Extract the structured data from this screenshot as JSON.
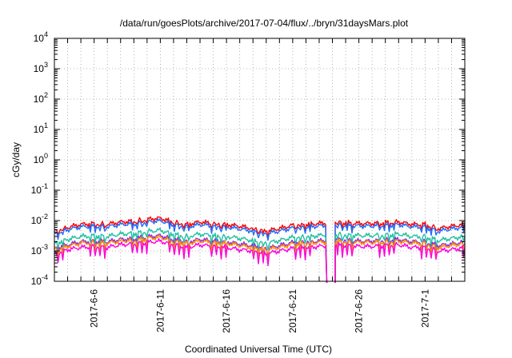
{
  "chart_data": {
    "type": "line",
    "title": "/data/run/goesPlots/archive/2017-07-04/flux/../bryn/31daysMars.plot",
    "xlabel": "Coordinated Universal Time (UTC)",
    "ylabel": "cGy/day",
    "yscale": "log",
    "ylim": [
      0.0001,
      10000
    ],
    "xlim": [
      "2017-06-03",
      "2017-07-04"
    ],
    "yticks": [
      {
        "value": 0.0001,
        "base": "10",
        "exp": "-4"
      },
      {
        "value": 0.001,
        "base": "10",
        "exp": "-3"
      },
      {
        "value": 0.01,
        "base": "10",
        "exp": "-2"
      },
      {
        "value": 0.1,
        "base": "10",
        "exp": "-1"
      },
      {
        "value": 1,
        "base": "10",
        "exp": "0"
      },
      {
        "value": 10,
        "base": "10",
        "exp": "1"
      },
      {
        "value": 100,
        "base": "10",
        "exp": "2"
      },
      {
        "value": 1000,
        "base": "10",
        "exp": "3"
      },
      {
        "value": 10000,
        "base": "10",
        "exp": "4"
      }
    ],
    "xticks": [
      "2017-6-6",
      "2017-6-11",
      "2017-6-16",
      "2017-6-21",
      "2017-6-26",
      "2017-7-1"
    ],
    "grid": true,
    "legend": "none",
    "dropout": {
      "start": "2017-06-23T12:00",
      "end": "2017-06-24T04:00"
    },
    "series": [
      {
        "color": "#ff0000",
        "x": [
          "2017-06-03",
          "2017-06-04",
          "2017-06-05",
          "2017-06-06",
          "2017-06-07",
          "2017-06-08",
          "2017-06-09",
          "2017-06-10",
          "2017-06-11",
          "2017-06-12",
          "2017-06-13",
          "2017-06-14",
          "2017-06-15",
          "2017-06-16",
          "2017-06-17",
          "2017-06-18",
          "2017-06-19",
          "2017-06-20",
          "2017-06-21",
          "2017-06-22",
          "2017-06-23",
          "2017-06-24",
          "2017-06-25",
          "2017-06-26",
          "2017-06-27",
          "2017-06-28",
          "2017-06-29",
          "2017-06-30",
          "2017-07-01",
          "2017-07-02",
          "2017-07-03",
          "2017-07-04"
        ],
        "values": [
          0.0045,
          0.006,
          0.0075,
          0.008,
          0.0075,
          0.009,
          0.0095,
          0.011,
          0.012,
          0.009,
          0.0075,
          0.009,
          0.008,
          0.0075,
          0.0065,
          0.0055,
          0.0045,
          0.0055,
          0.007,
          0.0075,
          0.008,
          0.009,
          0.0085,
          0.008,
          0.008,
          0.0085,
          0.009,
          0.0075,
          0.0075,
          0.0055,
          0.0065,
          0.0075
        ]
      },
      {
        "color": "#1e6cff",
        "x": [
          "2017-06-03",
          "2017-06-04",
          "2017-06-05",
          "2017-06-06",
          "2017-06-07",
          "2017-06-08",
          "2017-06-09",
          "2017-06-10",
          "2017-06-11",
          "2017-06-12",
          "2017-06-13",
          "2017-06-14",
          "2017-06-15",
          "2017-06-16",
          "2017-06-17",
          "2017-06-18",
          "2017-06-19",
          "2017-06-20",
          "2017-06-21",
          "2017-06-22",
          "2017-06-23",
          "2017-06-24",
          "2017-06-25",
          "2017-06-26",
          "2017-06-27",
          "2017-06-28",
          "2017-06-29",
          "2017-06-30",
          "2017-07-01",
          "2017-07-02",
          "2017-07-03",
          "2017-07-04"
        ],
        "values": [
          0.0037,
          0.005,
          0.0062,
          0.0066,
          0.0062,
          0.0074,
          0.0078,
          0.009,
          0.0098,
          0.0074,
          0.0062,
          0.0074,
          0.0066,
          0.0062,
          0.0053,
          0.0045,
          0.0037,
          0.0045,
          0.0057,
          0.0062,
          0.0066,
          0.0074,
          0.007,
          0.0066,
          0.0066,
          0.007,
          0.0074,
          0.0062,
          0.0062,
          0.0045,
          0.0053,
          0.0062
        ]
      },
      {
        "color": "#20c0a0",
        "x": [
          "2017-06-03",
          "2017-06-04",
          "2017-06-05",
          "2017-06-06",
          "2017-06-07",
          "2017-06-08",
          "2017-06-09",
          "2017-06-10",
          "2017-06-11",
          "2017-06-12",
          "2017-06-13",
          "2017-06-14",
          "2017-06-15",
          "2017-06-16",
          "2017-06-17",
          "2017-06-18",
          "2017-06-19",
          "2017-06-20",
          "2017-06-21",
          "2017-06-22",
          "2017-06-23",
          "2017-06-24",
          "2017-06-25",
          "2017-06-26",
          "2017-06-27",
          "2017-06-28",
          "2017-06-29",
          "2017-06-30",
          "2017-07-01",
          "2017-07-02",
          "2017-07-03",
          "2017-07-04"
        ],
        "values": [
          0.0018,
          0.0024,
          0.003,
          0.0032,
          0.003,
          0.0036,
          0.0038,
          0.0044,
          0.0048,
          0.0036,
          0.003,
          0.0036,
          0.0032,
          0.003,
          0.0026,
          0.0022,
          0.0018,
          0.0022,
          0.0028,
          0.003,
          0.0032,
          0.0036,
          0.0034,
          0.0032,
          0.0032,
          0.0034,
          0.0036,
          0.003,
          0.003,
          0.0022,
          0.0026,
          0.003
        ]
      },
      {
        "color": "#8a2be2",
        "x": [
          "2017-06-03",
          "2017-06-04",
          "2017-06-05",
          "2017-06-06",
          "2017-06-07",
          "2017-06-08",
          "2017-06-09",
          "2017-06-10",
          "2017-06-11",
          "2017-06-12",
          "2017-06-13",
          "2017-06-14",
          "2017-06-15",
          "2017-06-16",
          "2017-06-17",
          "2017-06-18",
          "2017-06-19",
          "2017-06-20",
          "2017-06-21",
          "2017-06-22",
          "2017-06-23",
          "2017-06-24",
          "2017-06-25",
          "2017-06-26",
          "2017-06-27",
          "2017-06-28",
          "2017-06-29",
          "2017-06-30",
          "2017-07-01",
          "2017-07-02",
          "2017-07-03",
          "2017-07-04"
        ],
        "values": [
          0.0012,
          0.0016,
          0.002,
          0.0021,
          0.002,
          0.0024,
          0.0025,
          0.0029,
          0.0032,
          0.0024,
          0.002,
          0.0024,
          0.0021,
          0.002,
          0.0017,
          0.0015,
          0.0012,
          0.0015,
          0.0019,
          0.002,
          0.0021,
          0.0024,
          0.0023,
          0.0021,
          0.0021,
          0.0023,
          0.0024,
          0.002,
          0.002,
          0.0015,
          0.0017,
          0.002
        ]
      },
      {
        "color": "#ff8c00",
        "x": [
          "2017-06-03",
          "2017-06-04",
          "2017-06-05",
          "2017-06-06",
          "2017-06-07",
          "2017-06-08",
          "2017-06-09",
          "2017-06-10",
          "2017-06-11",
          "2017-06-12",
          "2017-06-13",
          "2017-06-14",
          "2017-06-15",
          "2017-06-16",
          "2017-06-17",
          "2017-06-18",
          "2017-06-19",
          "2017-06-20",
          "2017-06-21",
          "2017-06-22",
          "2017-06-23",
          "2017-06-24",
          "2017-06-25",
          "2017-06-26",
          "2017-06-27",
          "2017-06-28",
          "2017-06-29",
          "2017-06-30",
          "2017-07-01",
          "2017-07-02",
          "2017-07-03",
          "2017-07-04"
        ],
        "values": [
          0.0011,
          0.0014,
          0.0018,
          0.0019,
          0.0018,
          0.0021,
          0.0022,
          0.0026,
          0.0028,
          0.0021,
          0.0018,
          0.0021,
          0.0019,
          0.0018,
          0.0015,
          0.0013,
          0.0011,
          0.0013,
          0.0017,
          0.0018,
          0.0019,
          0.0021,
          0.002,
          0.0019,
          0.0019,
          0.002,
          0.0021,
          0.0018,
          0.0018,
          0.0013,
          0.0015,
          0.0018
        ]
      },
      {
        "color": "#ff00e0",
        "x": [
          "2017-06-03",
          "2017-06-04",
          "2017-06-05",
          "2017-06-06",
          "2017-06-07",
          "2017-06-08",
          "2017-06-09",
          "2017-06-10",
          "2017-06-11",
          "2017-06-12",
          "2017-06-13",
          "2017-06-14",
          "2017-06-15",
          "2017-06-16",
          "2017-06-17",
          "2017-06-18",
          "2017-06-19",
          "2017-06-20",
          "2017-06-21",
          "2017-06-22",
          "2017-06-23",
          "2017-06-24",
          "2017-06-25",
          "2017-06-26",
          "2017-06-27",
          "2017-06-28",
          "2017-06-29",
          "2017-06-30",
          "2017-07-01",
          "2017-07-02",
          "2017-07-03",
          "2017-07-04"
        ],
        "values": [
          0.0008,
          0.0011,
          0.0013,
          0.0014,
          0.0013,
          0.0016,
          0.0017,
          0.0019,
          0.0021,
          0.0016,
          0.0013,
          0.0016,
          0.0014,
          0.0013,
          0.0011,
          0.001,
          0.0008,
          0.001,
          0.0012,
          0.0013,
          0.0014,
          0.0016,
          0.0015,
          0.0014,
          0.0014,
          0.0015,
          0.0016,
          0.0013,
          0.0013,
          0.001,
          0.0011,
          0.0013
        ]
      }
    ]
  }
}
